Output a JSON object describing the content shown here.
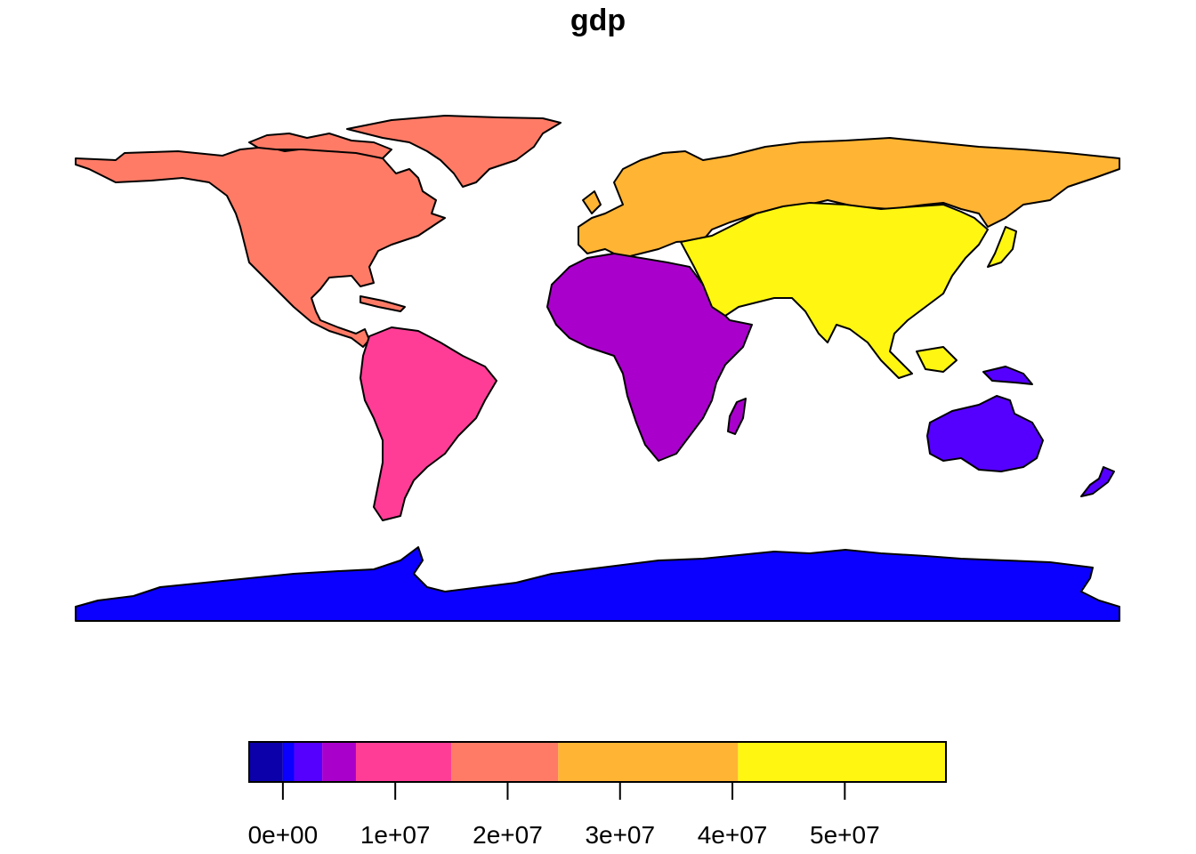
{
  "title": "gdp",
  "continents": [
    {
      "name": "North America",
      "color": "#FF7B66"
    },
    {
      "name": "South America",
      "color": "#FF3D96"
    },
    {
      "name": "Europe",
      "color": "#FFB433"
    },
    {
      "name": "Africa",
      "color": "#AA00CC"
    },
    {
      "name": "Asia",
      "color": "#FFF611"
    },
    {
      "name": "Oceania",
      "color": "#5500FF"
    },
    {
      "name": "Antarctica",
      "color": "#0B00FF"
    }
  ],
  "legend": {
    "breaks": [
      -3000000,
      0,
      1000000,
      3500000,
      6500000,
      15000000,
      24500000,
      40500000,
      59000000
    ],
    "colors": [
      "#0B00AA",
      "#0B00FF",
      "#5500FF",
      "#AA00CC",
      "#FF3D96",
      "#FF7B66",
      "#FFB433",
      "#FFF611"
    ],
    "ticks": [
      0,
      10000000,
      20000000,
      30000000,
      40000000,
      50000000
    ],
    "tick_labels": [
      "0e+00",
      "1e+07",
      "2e+07",
      "3e+07",
      "4e+07",
      "5e+07"
    ]
  }
}
